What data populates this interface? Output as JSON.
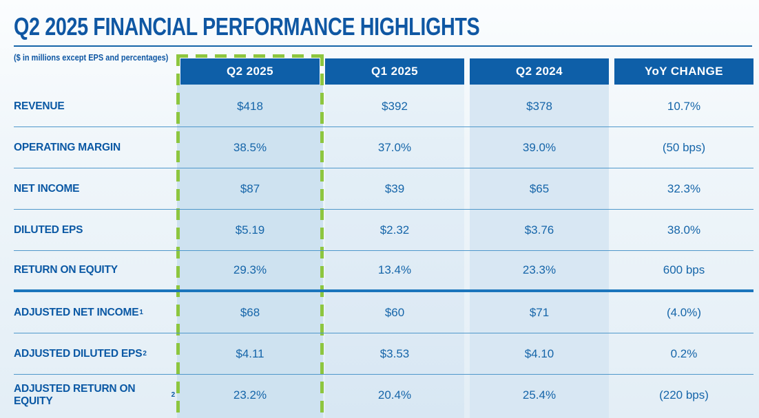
{
  "page": {
    "title": "Q2 2025 FINANCIAL PERFORMANCE HIGHLIGHTS",
    "subtitle": "($ in millions except EPS and percentages)"
  },
  "table": {
    "columns": [
      {
        "label": "Q2 2025",
        "highlighted": true
      },
      {
        "label": "Q1 2025",
        "highlighted": false
      },
      {
        "label": "Q2 2024",
        "highlighted": false
      },
      {
        "label": "YoY CHANGE",
        "highlighted": false
      }
    ],
    "rows": [
      {
        "label": "REVENUE",
        "sup": "",
        "values": [
          "$418",
          "$392",
          "$378",
          "10.7%"
        ]
      },
      {
        "label": "OPERATING MARGIN",
        "sup": "",
        "values": [
          "38.5%",
          "37.0%",
          "39.0%",
          "(50 bps)"
        ]
      },
      {
        "label": "NET INCOME",
        "sup": "",
        "values": [
          "$87",
          "$39",
          "$65",
          "32.3%"
        ]
      },
      {
        "label": "DILUTED EPS",
        "sup": "",
        "values": [
          "$5.19",
          "$2.32",
          "$3.76",
          "38.0%"
        ]
      },
      {
        "label": "RETURN ON EQUITY",
        "sup": "",
        "values": [
          "29.3%",
          "13.4%",
          "23.3%",
          "600 bps"
        ]
      },
      {
        "label": "ADJUSTED NET INCOME",
        "sup": "1",
        "values": [
          "$68",
          "$60",
          "$71",
          "(4.0%)"
        ]
      },
      {
        "label": "ADJUSTED DILUTED EPS",
        "sup": "2",
        "values": [
          "$4.11",
          "$3.53",
          "$4.10",
          "0.2%"
        ]
      },
      {
        "label": "ADJUSTED RETURN ON EQUITY",
        "sup": "2",
        "values": [
          "23.2%",
          "20.4%",
          "25.4%",
          "(220 bps)"
        ]
      }
    ]
  },
  "colors": {
    "header_bg": "#0E5FA8",
    "title_text": "#0F57A3",
    "label_text": "#0A58A4",
    "value_text": "#1565A9",
    "highlight_green": "#8DC63F",
    "row_divider": "#4E97CA",
    "section_divider": "#1B75BC",
    "q2_2025_column_tint": "#CEE2F0",
    "q2_2024_column_tint": "#D8E7F3"
  }
}
